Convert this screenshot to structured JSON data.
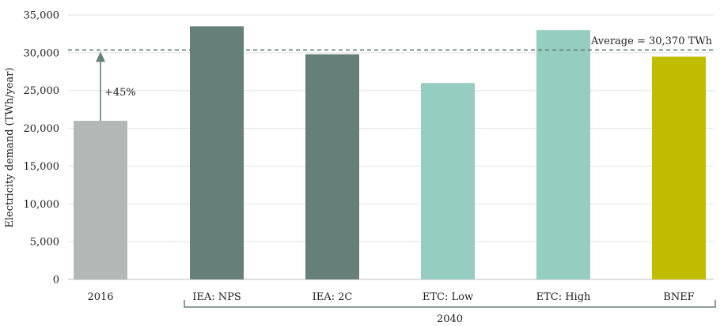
{
  "chart_data": {
    "type": "bar",
    "ylabel": "Electricity demand (TWh/year)",
    "ylim": [
      0,
      35000
    ],
    "yticks": [
      0,
      5000,
      10000,
      15000,
      20000,
      25000,
      30000,
      35000
    ],
    "ytick_labels": [
      "0",
      "5,000",
      "10,000",
      "15,000",
      "20,000",
      "25,000",
      "30,000",
      "35,000"
    ],
    "grid": true,
    "categories": [
      "2016",
      "IEA: NPS",
      "IEA: 2C",
      "ETC: Low",
      "ETC: High",
      "BNEF"
    ],
    "values": [
      21000,
      33500,
      29800,
      26000,
      33000,
      29500
    ],
    "bar_colors": [
      "#b1b8b5",
      "#677f79",
      "#677f79",
      "#95cdc0",
      "#95cdc0",
      "#c0bd00"
    ],
    "group_label": "2040",
    "reference_line": {
      "value": 30370,
      "label": "Average = 30,370 TWh",
      "color": "#677f79"
    },
    "growth_annotation": {
      "label": "+45%",
      "color": "#677f79"
    }
  }
}
